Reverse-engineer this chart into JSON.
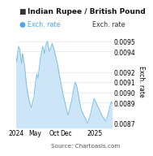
{
  "title": "Indian Rupee / British Pound",
  "legend_label": "Exch. rate",
  "ylabel": "Exch. rate",
  "source": "Source: Chartoasis.com",
  "ylim": [
    0.00865,
    0.00958
  ],
  "yticks": [
    0.0087,
    0.0089,
    0.009,
    0.0091,
    0.0092,
    0.0094,
    0.0095
  ],
  "xtick_positions": [
    0,
    20,
    40,
    52,
    82
  ],
  "xtick_labels": [
    "2024",
    "May",
    "Oct",
    "Dec",
    "2025"
  ],
  "line_color": "#7bbfe8",
  "fill_color": "#cde6f7",
  "title_color": "#111111",
  "title_fontsize": 6.5,
  "tick_fontsize": 5.5,
  "legend_fontsize": 5.8,
  "source_fontsize": 5.2,
  "legend_color": "#4da6f5",
  "ylabel_fontsize": 5.5,
  "background_color": "#ffffff",
  "y_data": [
    0.00935,
    0.0093,
    0.0094,
    0.00945,
    0.00942,
    0.00935,
    0.00928,
    0.00938,
    0.00932,
    0.00926,
    0.00918,
    0.00908,
    0.00902,
    0.00896,
    0.00892,
    0.00888,
    0.00885,
    0.00888,
    0.00892,
    0.00896,
    0.00905,
    0.00912,
    0.00918,
    0.00914,
    0.0092,
    0.00928,
    0.00935,
    0.0094,
    0.00945,
    0.00942,
    0.00938,
    0.00945,
    0.00948,
    0.0095,
    0.00945,
    0.0094,
    0.00942,
    0.00945,
    0.00948,
    0.00945,
    0.00942,
    0.00938,
    0.00934,
    0.0093,
    0.00926,
    0.0092,
    0.00915,
    0.0091,
    0.00905,
    0.009,
    0.00896,
    0.00892,
    0.00888,
    0.00884,
    0.0088,
    0.00878,
    0.00882,
    0.00886,
    0.0089,
    0.00895,
    0.009,
    0.00905,
    0.0091,
    0.00908,
    0.00905,
    0.009,
    0.00895,
    0.0089,
    0.00885,
    0.00882,
    0.0088,
    0.00878,
    0.00876,
    0.00874,
    0.00872,
    0.0087,
    0.00872,
    0.00875,
    0.00878,
    0.00882,
    0.00886,
    0.0089,
    0.00894,
    0.00892,
    0.0089,
    0.00888,
    0.00886,
    0.00884,
    0.00882,
    0.0088,
    0.00878,
    0.00876,
    0.00875,
    0.00873,
    0.00872,
    0.00874,
    0.00876,
    0.0088,
    0.00884,
    0.00888,
    0.00891,
    0.00889
  ]
}
